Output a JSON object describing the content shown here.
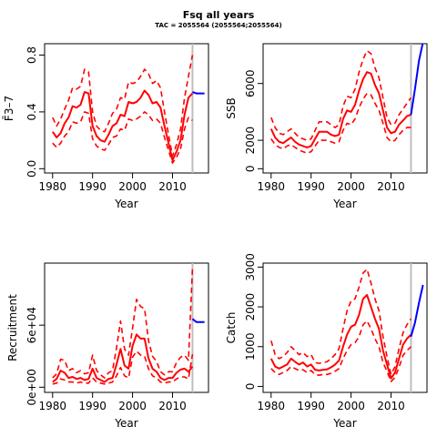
{
  "title": "Fsq all years",
  "subtitle": "TAC = 2055564 (2055564;2055564)",
  "colors": {
    "historic": "#ff0000",
    "forecast": "#0000ff",
    "divider": "#bebebe"
  },
  "chart_data": [
    {
      "id": "fbar",
      "type": "line",
      "xlabel": "Year",
      "ylabel": "F̄3–7",
      "xlim": [
        1978,
        2019
      ],
      "ylim": [
        -0.03,
        0.88
      ],
      "xticks": [
        1980,
        1990,
        2000,
        2010
      ],
      "xtick_labels": [
        "1980",
        "1990",
        "2000",
        "2010"
      ],
      "yticks": [
        0.0,
        0.4,
        0.8
      ],
      "ytick_labels": [
        "0.0",
        "0.4",
        "0.8"
      ],
      "divider_x": 2015,
      "x": [
        1980,
        1981,
        1982,
        1983,
        1984,
        1985,
        1986,
        1987,
        1988,
        1989,
        1990,
        1991,
        1992,
        1993,
        1994,
        1995,
        1996,
        1997,
        1998,
        1999,
        2000,
        2001,
        2002,
        2003,
        2004,
        2005,
        2006,
        2007,
        2008,
        2009,
        2010,
        2011,
        2012,
        2013,
        2014,
        2015
      ],
      "series": [
        {
          "role": "estimate",
          "values": [
            0.26,
            0.22,
            0.25,
            0.32,
            0.36,
            0.44,
            0.43,
            0.45,
            0.54,
            0.53,
            0.3,
            0.23,
            0.2,
            0.19,
            0.24,
            0.3,
            0.32,
            0.38,
            0.37,
            0.47,
            0.46,
            0.47,
            0.5,
            0.55,
            0.52,
            0.46,
            0.47,
            0.43,
            0.3,
            0.18,
            0.06,
            0.12,
            0.2,
            0.38,
            0.5,
            0.53
          ]
        },
        {
          "role": "upper",
          "values": [
            0.36,
            0.3,
            0.35,
            0.42,
            0.48,
            0.57,
            0.56,
            0.58,
            0.7,
            0.68,
            0.4,
            0.3,
            0.27,
            0.26,
            0.32,
            0.39,
            0.42,
            0.5,
            0.49,
            0.61,
            0.6,
            0.61,
            0.65,
            0.7,
            0.67,
            0.6,
            0.62,
            0.57,
            0.4,
            0.24,
            0.09,
            0.17,
            0.28,
            0.5,
            0.65,
            0.8
          ]
        },
        {
          "role": "lower",
          "values": [
            0.18,
            0.15,
            0.18,
            0.23,
            0.26,
            0.33,
            0.32,
            0.33,
            0.4,
            0.39,
            0.21,
            0.16,
            0.14,
            0.13,
            0.17,
            0.22,
            0.23,
            0.28,
            0.27,
            0.35,
            0.34,
            0.35,
            0.37,
            0.4,
            0.38,
            0.34,
            0.35,
            0.32,
            0.22,
            0.13,
            0.04,
            0.08,
            0.14,
            0.28,
            0.36,
            0.34
          ]
        }
      ],
      "forecast": {
        "x": [
          2015,
          2016,
          2017,
          2018
        ],
        "values": [
          0.54,
          0.53,
          0.53,
          0.53
        ]
      }
    },
    {
      "id": "ssb",
      "type": "line",
      "xlabel": "Year",
      "ylabel": "SSB",
      "xlim": [
        1978,
        2019
      ],
      "ylim": [
        -300,
        8800
      ],
      "xticks": [
        1980,
        1990,
        2000,
        2010
      ],
      "xtick_labels": [
        "1980",
        "1990",
        "2000",
        "2010"
      ],
      "yticks": [
        0,
        2000,
        6000
      ],
      "ytick_labels": [
        "0",
        "2000",
        "6000"
      ],
      "divider_x": 2015,
      "x": [
        1980,
        1981,
        1982,
        1983,
        1984,
        1985,
        1986,
        1987,
        1988,
        1989,
        1990,
        1991,
        1992,
        1993,
        1994,
        1995,
        1996,
        1997,
        1998,
        1999,
        2000,
        2001,
        2002,
        2003,
        2004,
        2005,
        2006,
        2007,
        2008,
        2009,
        2010,
        2011,
        2012,
        2013,
        2014,
        2015
      ],
      "series": [
        {
          "role": "estimate",
          "values": [
            2800,
            2200,
            1900,
            1800,
            2000,
            2200,
            1900,
            1700,
            1600,
            1500,
            1600,
            2100,
            2600,
            2600,
            2600,
            2400,
            2300,
            2400,
            3500,
            4100,
            4000,
            4500,
            5500,
            6300,
            6800,
            6700,
            5900,
            5300,
            4100,
            2900,
            2500,
            2600,
            3100,
            3400,
            3700,
            3800
          ]
        },
        {
          "role": "upper",
          "values": [
            3600,
            2900,
            2500,
            2400,
            2600,
            2800,
            2500,
            2200,
            2100,
            2000,
            2100,
            2700,
            3300,
            3300,
            3300,
            3100,
            2900,
            3100,
            4400,
            5100,
            5000,
            5600,
            6800,
            7700,
            8300,
            8100,
            7100,
            6400,
            5000,
            3600,
            3100,
            3200,
            3800,
            4200,
            4600,
            5000
          ]
        },
        {
          "role": "lower",
          "values": [
            2100,
            1700,
            1500,
            1400,
            1600,
            1700,
            1500,
            1300,
            1200,
            1100,
            1200,
            1600,
            2000,
            2000,
            2000,
            1900,
            1800,
            1900,
            2700,
            3200,
            3100,
            3500,
            4300,
            4900,
            5300,
            5200,
            4600,
            4100,
            3200,
            2200,
            1900,
            2000,
            2400,
            2700,
            2900,
            2900
          ]
        }
      ],
      "forecast": {
        "x": [
          2015,
          2016,
          2017,
          2018
        ],
        "values": [
          3800,
          5600,
          7600,
          8900
        ]
      }
    },
    {
      "id": "recruitment",
      "type": "line",
      "xlabel": "Year",
      "ylabel": "Recruitment",
      "xlim": [
        1978,
        2019
      ],
      "ylim": [
        -5000,
        120000
      ],
      "xticks": [
        1980,
        1990,
        2000,
        2010
      ],
      "xtick_labels": [
        "1980",
        "1990",
        "2000",
        "2010"
      ],
      "yticks": [
        0,
        60000
      ],
      "ytick_labels": [
        "0e+00",
        "6e+04"
      ],
      "divider_x": 2015,
      "x": [
        1980,
        1981,
        1982,
        1983,
        1984,
        1985,
        1986,
        1987,
        1988,
        1989,
        1990,
        1991,
        1992,
        1993,
        1994,
        1995,
        1996,
        1997,
        1998,
        1999,
        2000,
        2001,
        2002,
        2003,
        2004,
        2005,
        2006,
        2007,
        2008,
        2009,
        2010,
        2011,
        2012,
        2013,
        2014,
        2015
      ],
      "series": [
        {
          "role": "estimate",
          "values": [
            5000,
            8000,
            16000,
            14000,
            9000,
            10000,
            8000,
            9000,
            7000,
            8000,
            18000,
            9000,
            7000,
            5000,
            8000,
            9000,
            22000,
            37000,
            21000,
            18000,
            40000,
            51000,
            47000,
            47000,
            28000,
            18000,
            15000,
            9000,
            7000,
            9000,
            9000,
            14000,
            17000,
            18000,
            15000,
            20000
          ]
        },
        {
          "role": "upper",
          "values": [
            9000,
            13000,
            27000,
            26000,
            16000,
            18000,
            14000,
            16000,
            13000,
            14000,
            31000,
            16000,
            12000,
            9000,
            14000,
            16000,
            38000,
            64000,
            37000,
            31000,
            57000,
            85000,
            78000,
            76000,
            45000,
            30000,
            25000,
            15000,
            12000,
            15000,
            15000,
            24000,
            29000,
            31000,
            26000,
            115000
          ]
        },
        {
          "role": "lower",
          "values": [
            3000,
            4000,
            8000,
            7000,
            5000,
            5000,
            4000,
            5000,
            4000,
            4000,
            9000,
            5000,
            4000,
            3000,
            4000,
            5000,
            11000,
            19000,
            11000,
            9000,
            29000,
            35000,
            31000,
            30000,
            18000,
            11000,
            9000,
            5000,
            4000,
            5000,
            5000,
            8000,
            10000,
            10000,
            8000,
            32000
          ]
        }
      ],
      "forecast": {
        "x": [
          2015,
          2016,
          2017,
          2018
        ],
        "values": [
          66000,
          63000,
          63000,
          63000
        ]
      }
    },
    {
      "id": "catch",
      "type": "line",
      "xlabel": "Year",
      "ylabel": "Catch",
      "xlim": [
        1978,
        2019
      ],
      "ylim": [
        -150,
        3100
      ],
      "xticks": [
        1980,
        1990,
        2000,
        2010
      ],
      "xtick_labels": [
        "1980",
        "1990",
        "2000",
        "2010"
      ],
      "yticks": [
        0,
        1000,
        2000,
        3000
      ],
      "ytick_labels": [
        "0",
        "1000",
        "2000",
        "3000"
      ],
      "divider_x": 2015,
      "x": [
        1980,
        1981,
        1982,
        1983,
        1984,
        1985,
        1986,
        1987,
        1988,
        1989,
        1990,
        1991,
        1992,
        1993,
        1994,
        1995,
        1996,
        1997,
        1998,
        1999,
        2000,
        2001,
        2002,
        2003,
        2004,
        2005,
        2006,
        2007,
        2008,
        2009,
        2010,
        2011,
        2012,
        2013,
        2014,
        2015
      ],
      "series": [
        {
          "role": "estimate",
          "values": [
            700,
            500,
            450,
            500,
            550,
            700,
            620,
            550,
            600,
            500,
            550,
            420,
            400,
            420,
            430,
            480,
            550,
            650,
            1000,
            1300,
            1500,
            1550,
            1800,
            2200,
            2300,
            2000,
            1700,
            1450,
            900,
            550,
            200,
            350,
            700,
            1050,
            1200,
            1300
          ]
        },
        {
          "role": "upper",
          "values": [
            1150,
            800,
            700,
            750,
            850,
            1000,
            900,
            800,
            850,
            750,
            800,
            600,
            580,
            600,
            620,
            700,
            800,
            950,
            1450,
            1900,
            2150,
            2200,
            2500,
            2850,
            2950,
            2600,
            2200,
            1900,
            1250,
            750,
            300,
            500,
            950,
            1350,
            1550,
            1700
          ]
        },
        {
          "role": "lower",
          "values": [
            450,
            350,
            300,
            350,
            400,
            500,
            450,
            400,
            420,
            350,
            400,
            300,
            280,
            300,
            300,
            330,
            380,
            450,
            700,
            900,
            1050,
            1100,
            1250,
            1550,
            1650,
            1450,
            1200,
            1000,
            600,
            380,
            120,
            230,
            480,
            780,
            900,
            1000
          ]
        }
      ],
      "forecast": {
        "x": [
          2015,
          2016,
          2017,
          2018
        ],
        "values": [
          1250,
          1600,
          2100,
          2550
        ]
      }
    }
  ]
}
